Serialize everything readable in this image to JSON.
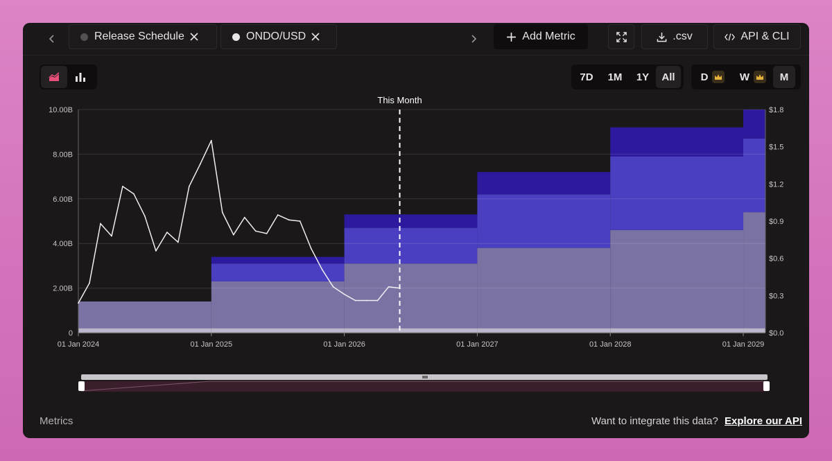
{
  "tabs": [
    {
      "label": "Release Schedule",
      "dot_color": "#555052"
    },
    {
      "label": "ONDO/USD",
      "dot_color": "#e8e6e7"
    }
  ],
  "toolbar": {
    "add_metric": "Add Metric",
    "csv": ".csv",
    "api": "API & CLI",
    "icons": {
      "prev": "chevron-left-icon",
      "next": "chevron-right-icon",
      "add": "plus-icon",
      "fullscreen": "expand-icon",
      "download": "download-icon",
      "code": "code-icon"
    }
  },
  "chart_type_toggle": {
    "icons": [
      "area-chart-icon",
      "bar-chart-icon"
    ],
    "active": "area-chart-icon",
    "accent": "#e8507a"
  },
  "range_buttons": {
    "items": [
      "7D",
      "1M",
      "1Y",
      "All"
    ],
    "active": "All"
  },
  "interval_buttons": {
    "items": [
      "D",
      "W",
      "M"
    ],
    "premium": [
      "D",
      "W"
    ],
    "active": "M",
    "crown_color": "#e8b23c"
  },
  "chart_data": {
    "type": "area",
    "marker_label": "This Month",
    "marker_x": "2026-06",
    "left_axis": {
      "ticks": [
        "0",
        "2.00B",
        "4.00B",
        "6.00B",
        "8.00B",
        "10.00B"
      ],
      "range": [
        0,
        10000000000
      ]
    },
    "right_axis": {
      "ticks": [
        "$0.0",
        "$0.3",
        "$0.6",
        "$0.9",
        "$1.2",
        "$1.5",
        "$1.8"
      ],
      "range": [
        0,
        1.8
      ]
    },
    "x_ticks": [
      "01 Jan 2024",
      "01 Jan 2025",
      "01 Jan 2026",
      "01 Jan 2027",
      "01 Jan 2028",
      "01 Jan 2029"
    ],
    "x_range": [
      "2024-01",
      "2029-03"
    ],
    "steps": [
      "2024-01",
      "2025-01",
      "2026-01",
      "2027-01",
      "2028-01",
      "2029-01"
    ],
    "series": [
      {
        "color": "#bdb6cc",
        "values": [
          0.2,
          0.2,
          0.2,
          0.2,
          0.2,
          0.2
        ],
        "unit": "B"
      },
      {
        "color": "#7a72a3",
        "values": [
          1.2,
          2.1,
          2.9,
          3.6,
          4.4,
          5.2
        ],
        "unit": "B"
      },
      {
        "color": "#4a3fc0",
        "values": [
          0.0,
          0.8,
          1.6,
          2.4,
          3.3,
          3.3
        ],
        "unit": "B"
      },
      {
        "color": "#2c1a9e",
        "values": [
          0.0,
          0.3,
          0.6,
          1.0,
          1.3,
          1.3
        ],
        "unit": "B"
      }
    ],
    "price_series": {
      "color": "#f0eef0",
      "x": [
        "2024-01",
        "2024-02",
        "2024-03",
        "2024-04",
        "2024-05",
        "2024-06",
        "2024-07",
        "2024-08",
        "2024-09",
        "2024-10",
        "2024-11",
        "2024-12",
        "2025-01",
        "2025-02",
        "2025-03",
        "2025-04",
        "2025-05",
        "2025-06",
        "2025-07",
        "2025-08",
        "2025-09",
        "2025-10",
        "2025-11",
        "2025-12",
        "2026-01",
        "2026-02",
        "2026-03",
        "2026-04",
        "2026-05",
        "2026-06"
      ],
      "values": [
        0.24,
        0.4,
        0.88,
        0.78,
        1.18,
        1.12,
        0.94,
        0.66,
        0.81,
        0.73,
        1.18,
        1.36,
        1.55,
        0.97,
        0.79,
        0.93,
        0.82,
        0.8,
        0.95,
        0.91,
        0.9,
        0.68,
        0.51,
        0.37,
        0.31,
        0.26,
        0.26,
        0.26,
        0.37,
        0.36
      ]
    }
  },
  "footer": {
    "left": "Metrics",
    "right_text": "Want to integrate this data?",
    "right_link": "Explore our API"
  }
}
